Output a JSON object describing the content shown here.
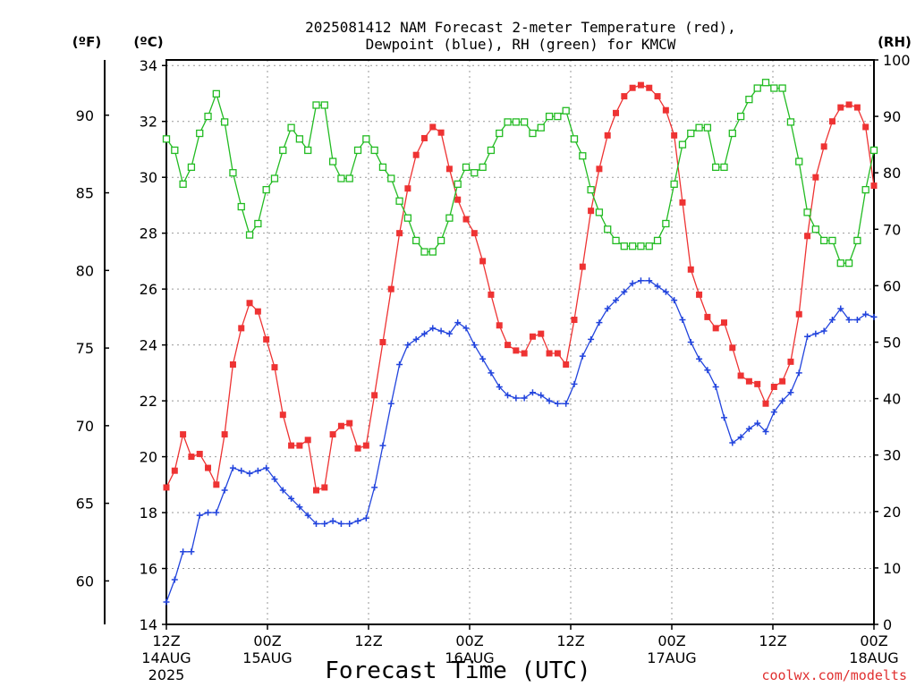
{
  "chart_data": {
    "type": "line",
    "title_line1": "2025081412 NAM Forecast 2-meter Temperature (red),",
    "title_line2": "Dewpoint (blue), RH (green) for KMCW",
    "xlabel": "Forecast Time (UTC)",
    "credit": "coolwx.com/modelts",
    "left_units_f": "(ºF)",
    "left_units_c": "(ºC)",
    "right_units": "(RH)",
    "x_range_hours": [
      0,
      84
    ],
    "x_ticks": [
      {
        "hour": 0,
        "line1": "12Z",
        "line2": "14AUG",
        "line3": "2025"
      },
      {
        "hour": 12,
        "line1": "00Z",
        "line2": "15AUG",
        "line3": ""
      },
      {
        "hour": 24,
        "line1": "12Z",
        "line2": "",
        "line3": ""
      },
      {
        "hour": 36,
        "line1": "00Z",
        "line2": "16AUG",
        "line3": ""
      },
      {
        "hour": 48,
        "line1": "12Z",
        "line2": "",
        "line3": ""
      },
      {
        "hour": 60,
        "line1": "00Z",
        "line2": "17AUG",
        "line3": ""
      },
      {
        "hour": 72,
        "line1": "12Z",
        "line2": "",
        "line3": ""
      },
      {
        "hour": 84,
        "line1": "00Z",
        "line2": "18AUG",
        "line3": ""
      }
    ],
    "celsius_axis": {
      "range": [
        14,
        34.2
      ],
      "ticks": [
        14,
        16,
        18,
        20,
        22,
        24,
        26,
        28,
        30,
        32,
        34
      ]
    },
    "fahrenheit_ticks": [
      60,
      65,
      70,
      75,
      80,
      85,
      90
    ],
    "rh_axis": {
      "range": [
        0,
        100
      ],
      "ticks": [
        0,
        10,
        20,
        30,
        40,
        50,
        60,
        70,
        80,
        90,
        100
      ]
    },
    "grid": true,
    "colors": {
      "temperature": "#ee3333",
      "dewpoint": "#2244dd",
      "rh": "#22bb22",
      "credit": "#e03030"
    },
    "series": [
      {
        "name": "Temperature",
        "unit": "C",
        "marker": "filled-square",
        "values": [
          18.9,
          19.5,
          20.8,
          20.0,
          20.1,
          19.6,
          19.0,
          20.8,
          23.3,
          24.6,
          25.5,
          25.2,
          24.2,
          23.2,
          21.5,
          20.4,
          20.4,
          20.6,
          18.8,
          18.9,
          20.8,
          21.1,
          21.2,
          20.3,
          20.4,
          22.2,
          24.1,
          26.0,
          28.0,
          29.6,
          30.8,
          31.4,
          31.8,
          31.6,
          30.3,
          29.2,
          28.5,
          28.0,
          27.0,
          25.8,
          24.7,
          24.0,
          23.8,
          23.7,
          24.3,
          24.4,
          23.7,
          23.7,
          23.3,
          24.9,
          26.8,
          28.8,
          30.3,
          31.5,
          32.3,
          32.9,
          33.2,
          33.3,
          33.2,
          32.9,
          32.4,
          31.5,
          29.1,
          26.7,
          25.8,
          25.0,
          24.6,
          24.8,
          23.9,
          22.9,
          22.7,
          22.6,
          21.9,
          22.5,
          22.7,
          23.4,
          25.1,
          27.9,
          30.0,
          31.1,
          32.0,
          32.5,
          32.6,
          32.5,
          31.8,
          29.7
        ]
      },
      {
        "name": "Dewpoint",
        "unit": "C",
        "marker": "plus",
        "values": [
          14.8,
          15.6,
          16.6,
          16.6,
          17.9,
          18.0,
          18.0,
          18.8,
          19.6,
          19.5,
          19.4,
          19.5,
          19.6,
          19.2,
          18.8,
          18.5,
          18.2,
          17.9,
          17.6,
          17.6,
          17.7,
          17.6,
          17.6,
          17.7,
          17.8,
          18.9,
          20.4,
          21.9,
          23.3,
          24.0,
          24.2,
          24.4,
          24.6,
          24.5,
          24.4,
          24.8,
          24.6,
          24.0,
          23.5,
          23.0,
          22.5,
          22.2,
          22.1,
          22.1,
          22.3,
          22.2,
          22.0,
          21.9,
          21.9,
          22.6,
          23.6,
          24.2,
          24.8,
          25.3,
          25.6,
          25.9,
          26.2,
          26.3,
          26.3,
          26.1,
          25.9,
          25.6,
          24.9,
          24.1,
          23.5,
          23.1,
          22.5,
          21.4,
          20.5,
          20.7,
          21.0,
          21.2,
          20.9,
          21.6,
          22.0,
          22.3,
          23.0,
          24.3,
          24.4,
          24.5,
          24.9,
          25.3,
          24.9,
          24.9,
          25.1,
          25.0
        ]
      },
      {
        "name": "RH",
        "unit": "%",
        "marker": "open-square",
        "values": [
          86,
          84,
          78,
          81,
          87,
          90,
          94,
          89,
          80,
          74,
          69,
          71,
          77,
          79,
          84,
          88,
          86,
          84,
          92,
          92,
          82,
          79,
          79,
          84,
          86,
          84,
          81,
          79,
          75,
          72,
          68,
          66,
          66,
          68,
          72,
          78,
          81,
          80,
          81,
          84,
          87,
          89,
          89,
          89,
          87,
          88,
          90,
          90,
          91,
          86,
          83,
          77,
          73,
          70,
          68,
          67,
          67,
          67,
          67,
          68,
          71,
          78,
          85,
          87,
          88,
          88,
          81,
          81,
          87,
          90,
          93,
          95,
          96,
          95,
          95,
          89,
          82,
          73,
          70,
          68,
          68,
          64,
          64,
          68,
          77,
          84
        ]
      }
    ]
  }
}
